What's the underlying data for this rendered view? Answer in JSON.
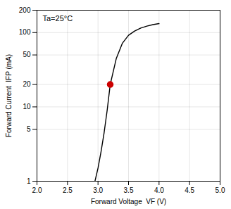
{
  "chart_data": {
    "type": "line",
    "xlabel": "Forward Voltage  VF (V)",
    "ylabel": "Forward Current  IFP (mA)",
    "annotation": "Ta=25°C",
    "log": "y",
    "grid": true,
    "xlim": [
      2.0,
      5.0
    ],
    "ylim": [
      1,
      200
    ],
    "xticks": [
      {
        "value": 2.0,
        "label": "2.0"
      },
      2.5,
      {
        "value": 3.0,
        "label": "3.0"
      },
      3.5,
      {
        "value": 4.0,
        "label": "4.0"
      },
      4.5,
      {
        "value": 5.0,
        "label": "5.0"
      }
    ],
    "yticks": [
      1,
      5,
      10,
      20,
      50,
      100,
      200
    ],
    "series": [
      {
        "type": "line",
        "color": "#000000",
        "x": [
          2.95,
          3.0,
          3.05,
          3.1,
          3.15,
          3.2,
          3.3,
          3.4,
          3.5,
          3.6,
          3.7,
          3.8,
          3.9,
          4.0
        ],
        "values": [
          1.0,
          1.5,
          2.5,
          4.5,
          9.0,
          20.0,
          45.0,
          72.0,
          92.0,
          105.0,
          115.0,
          122.0,
          128.0,
          132.0
        ]
      },
      {
        "type": "scatter",
        "marker": "circle",
        "color": "#cc0000",
        "x": [
          3.2
        ],
        "values": [
          20
        ]
      }
    ]
  }
}
